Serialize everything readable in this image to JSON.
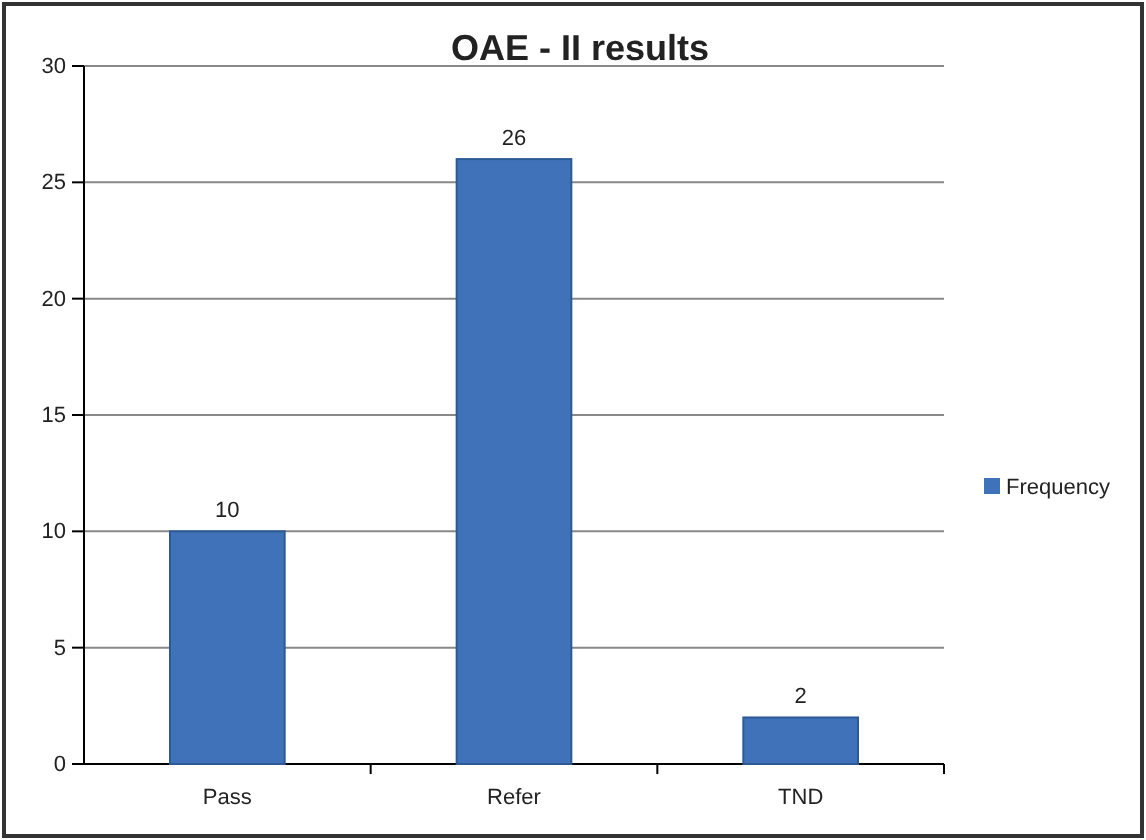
{
  "chart_data": {
    "type": "bar",
    "title": "OAE - II results",
    "categories": [
      "Pass",
      "Refer",
      "TND"
    ],
    "series": [
      {
        "name": "Frequency",
        "color": "#3f72b8",
        "values": [
          10,
          26,
          2
        ]
      }
    ],
    "ylim": [
      0,
      30
    ],
    "yticks": [
      0,
      5,
      10,
      15,
      20,
      25,
      30
    ],
    "grid": "y",
    "legend": "right",
    "data_labels": true
  }
}
